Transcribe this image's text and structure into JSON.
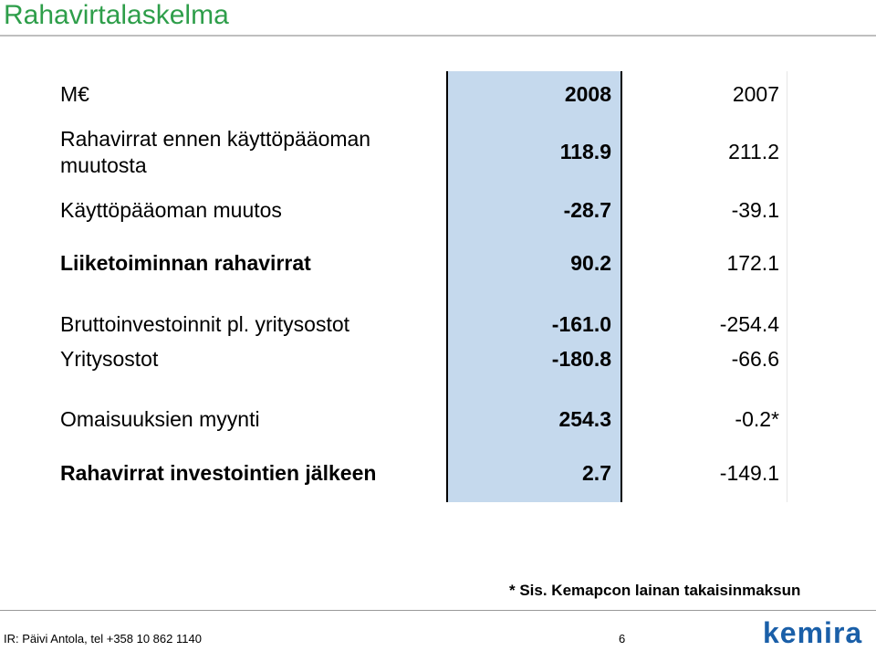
{
  "title": "Rahavirtalaskelma",
  "header": {
    "label": "M€",
    "col_2008": "2008",
    "col_2007": "2007"
  },
  "rows": [
    {
      "label_line1": "Rahavirrat ennen käyttöpääoman",
      "label_line2": "muutosta",
      "v2008": "118.9",
      "v2007": "211.2"
    },
    {
      "label": "Käyttöpääoman muutos",
      "v2008": "-28.7",
      "v2007": "-39.1"
    },
    {
      "label": "Liiketoiminnan rahavirrat",
      "v2008": "90.2",
      "v2007": "172.1"
    },
    {
      "label": "Bruttoinvestoinnit pl. yritysostot",
      "v2008": "-161.0",
      "v2007": "-254.4"
    },
    {
      "label": "Yritysostot",
      "v2008": "-180.8",
      "v2007": "-66.6"
    },
    {
      "label": "Omaisuuksien myynti",
      "v2008": "254.3",
      "v2007": "-0.2*"
    },
    {
      "label": "Rahavirrat investointien jälkeen",
      "v2008": "2.7",
      "v2007": "-149.1"
    }
  ],
  "footnote": "* Sis. Kemapcon lainan takaisinmaksun",
  "footer": {
    "contact": "IR: Päivi Antola, tel +358 10 862 1140",
    "page": "6"
  },
  "logo": {
    "text": "kemira",
    "color": "#1a5fa8"
  },
  "colors": {
    "title": "#2e9e4a",
    "highlight_column": "#c5d9ed"
  }
}
